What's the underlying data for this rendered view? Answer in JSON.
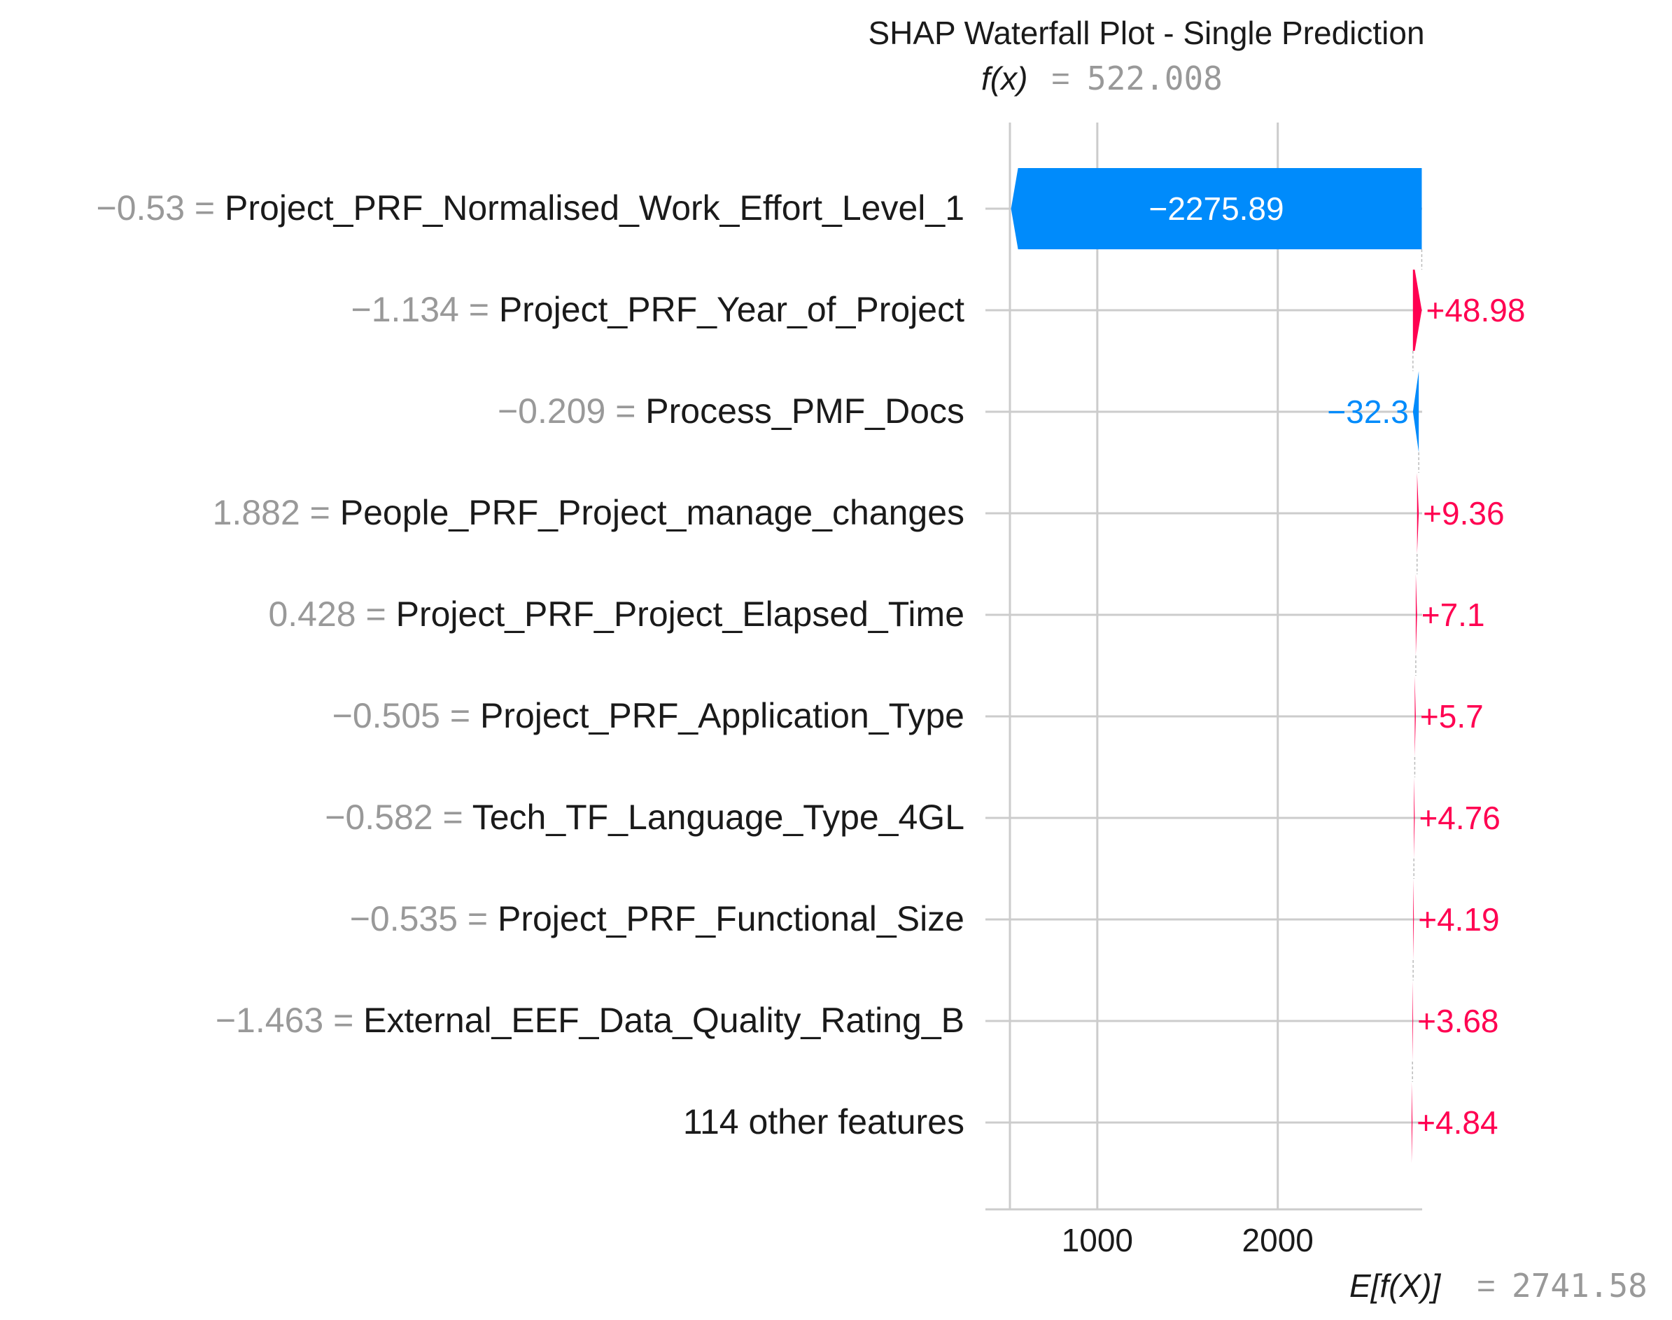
{
  "chart_data": {
    "type": "waterfall",
    "title": "SHAP Waterfall Plot - Single Prediction",
    "fx_label": "f(x)",
    "fx_value": "522.008",
    "efx_label": "E[f(X)]",
    "efx_value": "2741.58",
    "base_value": 2741.58,
    "final_value": 522.008,
    "xlim": [
      380,
      2800
    ],
    "xticks": [
      1000,
      2000
    ],
    "xtick_labels": [
      "1000",
      "2000"
    ],
    "grid": true,
    "colors": {
      "positive": "#ff0051",
      "negative": "#008bfb",
      "feature_value": "#999999",
      "text": "#1a1a1a",
      "grid": "#cccccc"
    },
    "features": [
      {
        "value": "−0.53",
        "name": "Project_PRF_Normalised_Work_Effort_Level_1",
        "shap": -2275.89,
        "label": "−2275.89"
      },
      {
        "value": "−1.134",
        "name": "Project_PRF_Year_of_Project",
        "shap": 48.98,
        "label": "+48.98"
      },
      {
        "value": "−0.209",
        "name": "Process_PMF_Docs",
        "shap": -32.3,
        "label": "−32.3"
      },
      {
        "value": "1.882",
        "name": "People_PRF_Project_manage_changes",
        "shap": 9.36,
        "label": "+9.36"
      },
      {
        "value": "0.428",
        "name": "Project_PRF_Project_Elapsed_Time",
        "shap": 7.1,
        "label": "+7.1"
      },
      {
        "value": "−0.505",
        "name": "Project_PRF_Application_Type",
        "shap": 5.7,
        "label": "+5.7"
      },
      {
        "value": "−0.582",
        "name": "Tech_TF_Language_Type_4GL",
        "shap": 4.76,
        "label": "+4.76"
      },
      {
        "value": "−0.535",
        "name": "Project_PRF_Functional_Size",
        "shap": 4.19,
        "label": "+4.19"
      },
      {
        "value": "−1.463",
        "name": "External_EEF_Data_Quality_Rating_B",
        "shap": 3.68,
        "label": "+3.68"
      },
      {
        "value": "",
        "name": "114 other features",
        "shap": 4.84,
        "label": "+4.84"
      }
    ]
  }
}
